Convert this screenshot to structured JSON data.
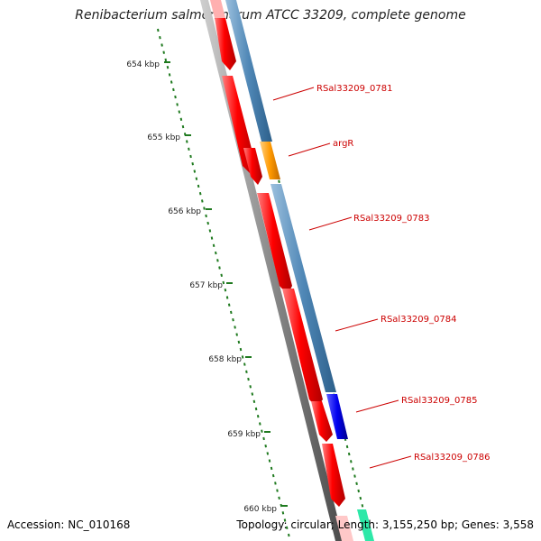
{
  "title": "Renibacterium salmoninarum ATCC 33209, complete genome",
  "footer": {
    "accession": "Accession: NC_010168",
    "topology": "Topology: circular; Length: 3,155,250 bp; Genes: 3,558"
  },
  "colors": {
    "backbone": "#888888",
    "cds": "#ff0000",
    "gene_track": "#4f87b6",
    "argR": "#ff9900",
    "gene_0785": "#0000ee",
    "tick": "#1f7a1f",
    "label_text": "#cc0000"
  },
  "kbp_ticks": [
    "654 kbp",
    "655 kbp",
    "656 kbp",
    "657 kbp",
    "658 kbp",
    "659 kbp",
    "660 kbp"
  ],
  "gene_labels": [
    "RSal33209_0781",
    "argR",
    "RSal33209_0783",
    "RSal33209_0784",
    "RSal33209_0785",
    "RSal33209_0786"
  ]
}
